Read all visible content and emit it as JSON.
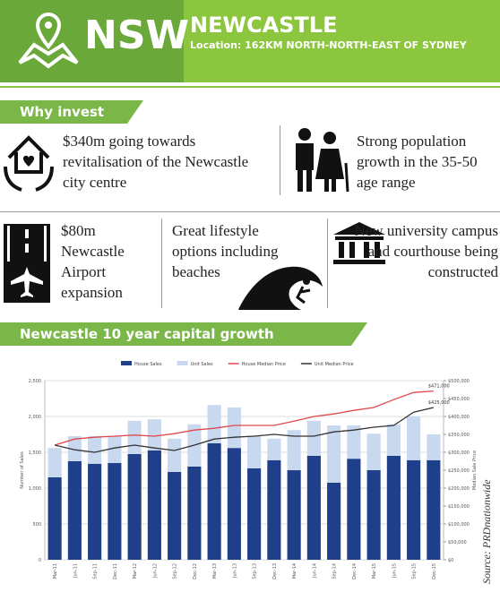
{
  "header": {
    "state": "NSW",
    "title": "NEWCASTLE",
    "subtitle": "Location: 162KM NORTH-NORTH-EAST OF SYDNEY"
  },
  "why_invest": {
    "heading": "Why invest",
    "items": [
      "$340m going towards revitalisation of the Newcastle city centre",
      "Strong population growth in the 35-50 age range",
      "$80m Newcastle Airport expansion",
      "Great lifestyle options including beaches",
      "New university campus and courthouse being constructed"
    ]
  },
  "chart_heading": "Newcastle 10 year capital growth",
  "source": "Source: PRDnationwide",
  "chart_data": {
    "type": "bar",
    "y_label": "Number of Sales",
    "y2_label": "Median Sale Price",
    "categories": [
      "Mar-11",
      "Jun-11",
      "Sep-11",
      "Dec-11",
      "Mar-12",
      "Jun-12",
      "Sep-12",
      "Dec-12",
      "Mar-13",
      "Jun-13",
      "Sep-13",
      "Dec-13",
      "Mar-14",
      "Jun-14",
      "Sep-14",
      "Dec-14",
      "Mar-15",
      "Jun-15",
      "Sep-15",
      "Dec-15"
    ],
    "series": [
      {
        "name": "House Sales",
        "color": "#1f3f8a",
        "values": [
          1150,
          1375,
          1340,
          1350,
          1475,
          1525,
          1225,
          1300,
          1625,
          1560,
          1275,
          1390,
          1250,
          1450,
          1075,
          1410,
          1250,
          1450,
          1390,
          1390
        ]
      },
      {
        "name": "Unit Sales",
        "color": "#c8d8ef",
        "values": [
          410,
          350,
          385,
          375,
          465,
          435,
          465,
          590,
          535,
          565,
          450,
          300,
          560,
          490,
          800,
          465,
          510,
          440,
          610,
          360
        ]
      },
      {
        "name": "House Median Price",
        "color": "#e0474c",
        "axis": "y2",
        "values": [
          320000,
          337000,
          342000,
          345000,
          348000,
          345000,
          352000,
          362000,
          367000,
          375000,
          375000,
          375000,
          387000,
          400000,
          407000,
          417000,
          425000,
          447000,
          467000,
          471000
        ],
        "value_labels": [
          null,
          null,
          null,
          null,
          null,
          null,
          null,
          null,
          null,
          null,
          null,
          null,
          null,
          null,
          null,
          null,
          null,
          null,
          null,
          "$471,000"
        ]
      },
      {
        "name": "Unit Median Price",
        "color": "#333333",
        "axis": "y2",
        "values": [
          320000,
          307000,
          300000,
          312000,
          320000,
          312000,
          305000,
          320000,
          337000,
          342000,
          345000,
          350000,
          345000,
          345000,
          357000,
          362000,
          370000,
          375000,
          412000,
          425000
        ],
        "value_labels": [
          null,
          null,
          null,
          null,
          null,
          null,
          null,
          null,
          null,
          null,
          null,
          null,
          null,
          null,
          null,
          null,
          null,
          null,
          null,
          "$425,000"
        ]
      }
    ],
    "stacked": true,
    "ylim": [
      0,
      2500
    ],
    "yticks": [
      0,
      500,
      {
        "value": 1000,
        "label": "1,000"
      },
      {
        "value": 1500,
        "label": "1,500"
      },
      {
        "value": 2000,
        "label": "2,000"
      },
      {
        "value": 2500,
        "label": "2,500"
      }
    ],
    "y2lim": [
      0,
      500000
    ],
    "y2ticks": [
      {
        "value": 0,
        "label": "$0"
      },
      {
        "value": 50000,
        "label": "$50,000"
      },
      {
        "value": 100000,
        "label": "$100,000"
      },
      {
        "value": 150000,
        "label": "$150,000"
      },
      {
        "value": 200000,
        "label": "$200,000"
      },
      {
        "value": 250000,
        "label": "$250,000"
      },
      {
        "value": 300000,
        "label": "$300,000"
      },
      {
        "value": 350000,
        "label": "$350,000"
      },
      {
        "value": 400000,
        "label": "$400,000"
      },
      {
        "value": 450000,
        "label": "$450,000"
      },
      {
        "value": 500000,
        "label": "$500,000"
      }
    ],
    "grid": true,
    "legend": "top"
  }
}
